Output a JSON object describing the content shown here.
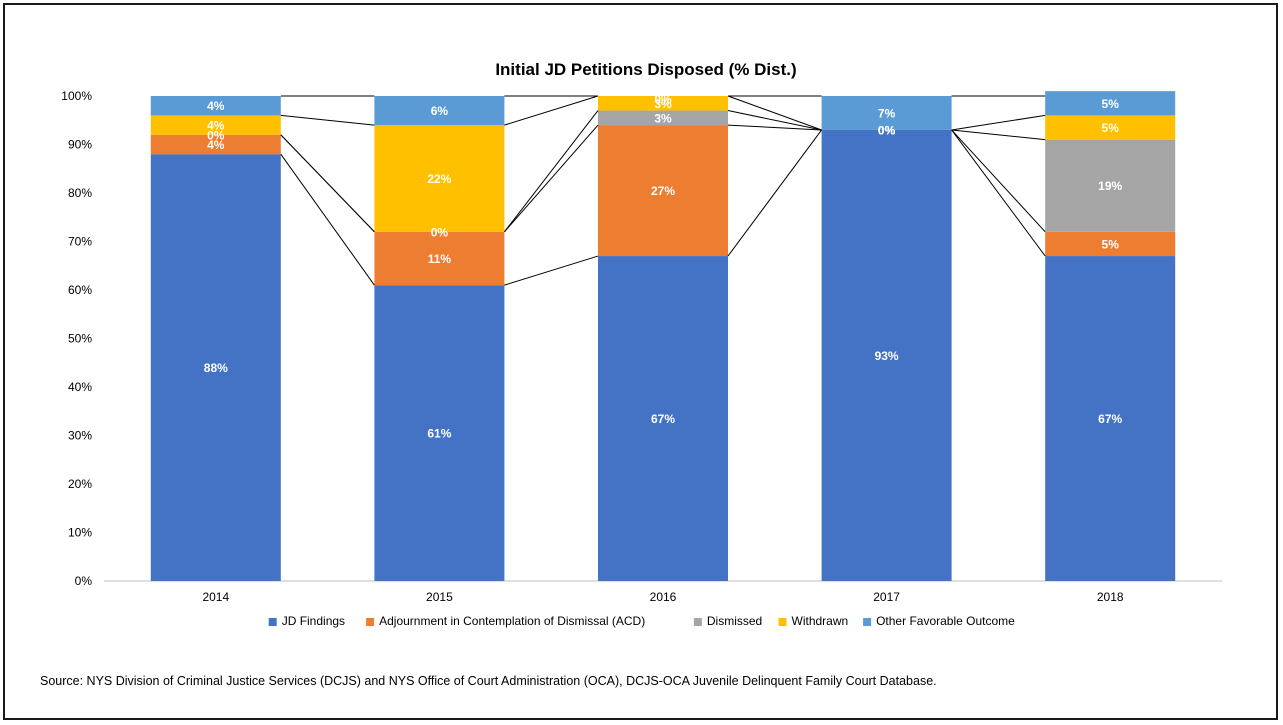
{
  "chart_data": {
    "type": "bar",
    "stacked": true,
    "title": "Initial JD Petitions Disposed (% Dist.)",
    "categories": [
      "2014",
      "2015",
      "2016",
      "2017",
      "2018"
    ],
    "series": [
      {
        "name": "JD Findings",
        "color": "#4472C4",
        "values": [
          88,
          61,
          67,
          93,
          67
        ],
        "labels": [
          "88%",
          "61%",
          "67%",
          "93%",
          "67%"
        ]
      },
      {
        "name": "Adjournment in Contemplation of Dismissal (ACD)",
        "color": "#ED7D31",
        "values": [
          4,
          11,
          27,
          0,
          5
        ],
        "labels": [
          "4%",
          "11%",
          "27%",
          "0%",
          "5%"
        ]
      },
      {
        "name": "Dismissed",
        "color": "#A5A5A5",
        "values": [
          0,
          0,
          3,
          0,
          19
        ],
        "labels": [
          "0%",
          "0%",
          "3%",
          "0%",
          "19%"
        ]
      },
      {
        "name": "Withdrawn",
        "color": "#FFC000",
        "values": [
          4,
          22,
          3,
          0,
          5
        ],
        "labels": [
          "4%",
          "22%",
          "3%",
          "0%",
          "5%"
        ]
      },
      {
        "name": "Other Favorable Outcome",
        "color": "#5B9BD5",
        "values": [
          4,
          6,
          0,
          7,
          5
        ],
        "labels": [
          "4%",
          "6%",
          "0%",
          "7%",
          "5%"
        ]
      }
    ],
    "y_ticks": [
      "0%",
      "10%",
      "20%",
      "30%",
      "40%",
      "50%",
      "60%",
      "70%",
      "80%",
      "90%",
      "100%"
    ],
    "ylim": [
      0,
      100
    ],
    "legend_position": "bottom",
    "series_lines": true
  },
  "source": {
    "text": "Source: NYS Division of Criminal Justice Services (DCJS) and NYS Office of Court Administration (OCA), DCJS-OCA Juvenile Delinquent Family Court Database."
  }
}
